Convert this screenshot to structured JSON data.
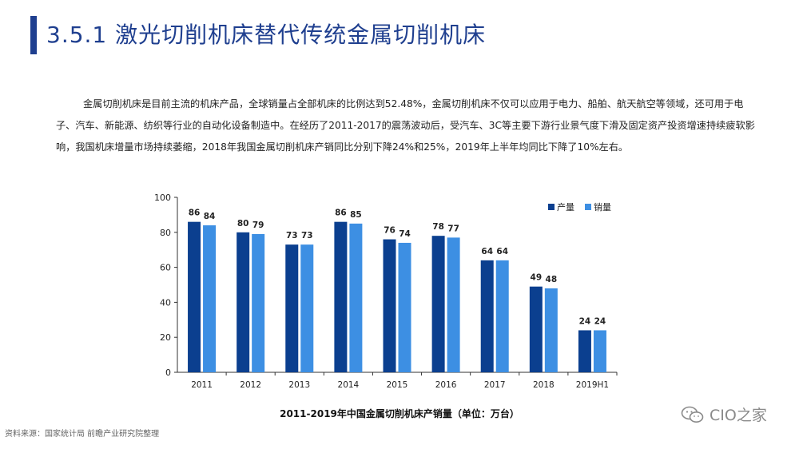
{
  "header": {
    "title": "3.5.1 激光切削机床替代传统金属切削机床"
  },
  "body_text": "金属切削机床是目前主流的机床产品，全球销量占全部机床的比例达到52.48%，金属切削机床不仅可以应用于电力、船舶、航天航空等领域，还可用于电子、汽车、新能源、纺织等行业的自动化设备制造中。在经历了2011-2017的震荡波动后，受汽车、3C等主要下游行业景气度下滑及固定资产投资增速持续疲软影响，我国机床增量市场持续萎缩，2018年我国金属切削机床产销同比分别下降24%和25%，2019年上半年均同比下降了10%左右。",
  "chart_data": {
    "type": "bar",
    "title": "2011-2019年中国金属切削机床产销量（单位：万台）",
    "categories": [
      "2011",
      "2012",
      "2013",
      "2014",
      "2015",
      "2016",
      "2017",
      "2018",
      "2019H1"
    ],
    "series": [
      {
        "name": "产量",
        "values": [
          86,
          80,
          73,
          86,
          76,
          78,
          64,
          49,
          24
        ],
        "color": "#0b3f8f"
      },
      {
        "name": "销量",
        "values": [
          84,
          79,
          73,
          85,
          74,
          77,
          64,
          48,
          24
        ],
        "color": "#3d8fe3"
      }
    ],
    "ylim": [
      0,
      100
    ],
    "yticks": [
      0,
      20,
      40,
      60,
      80,
      100
    ],
    "grid": false,
    "legend_position": "top-right",
    "data_labels": true
  },
  "footer": {
    "source": "资料来源：国家统计局 前瞻产业研究院整理",
    "watermark": "CIO之家",
    "watermark_icon": "wechat-icon"
  }
}
